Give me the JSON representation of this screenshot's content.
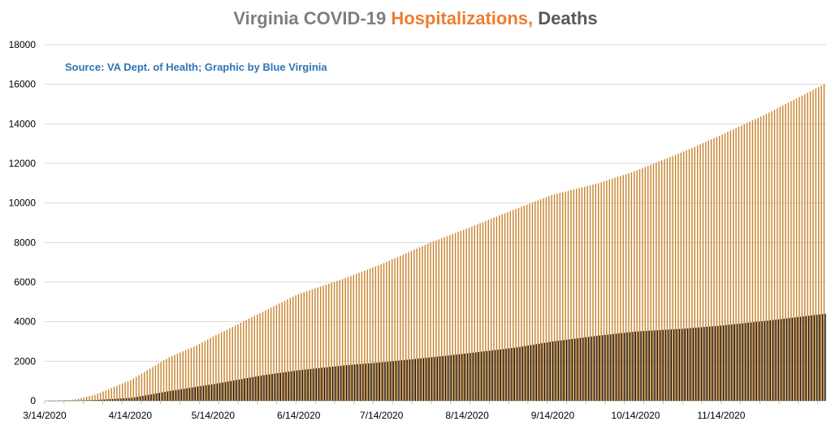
{
  "chart_data": {
    "type": "bar",
    "title_parts": [
      {
        "text": "Virginia COVID-19 ",
        "color": "#7f7f7f"
      },
      {
        "text": "Hospitalizations,",
        "color": "#ed7d31"
      },
      {
        "text": " Deaths",
        "color": "#595959"
      }
    ],
    "annotation": "Source: VA Dept. of Health; Graphic by Blue Virginia",
    "xlabel": "",
    "ylabel": "",
    "x_range": [
      "3/14/2020",
      "12/22/2020"
    ],
    "ylim": [
      0,
      18000
    ],
    "yticks": [
      0,
      2000,
      4000,
      6000,
      8000,
      10000,
      12000,
      14000,
      16000,
      18000
    ],
    "xticks": [
      "3/14/2020",
      "4/14/2020",
      "5/14/2020",
      "6/14/2020",
      "7/14/2020",
      "8/14/2020",
      "9/14/2020",
      "10/14/2020",
      "11/14/2020"
    ],
    "grid": true,
    "legend": "none",
    "series": [
      {
        "name": "Hospitalizations",
        "color": "#c8832c",
        "anchors": [
          {
            "date": "3/14/2020",
            "value": 0
          },
          {
            "date": "3/24/2020",
            "value": 50
          },
          {
            "date": "4/1/2020",
            "value": 300
          },
          {
            "date": "4/14/2020",
            "value": 1050
          },
          {
            "date": "4/28/2020",
            "value": 2200
          },
          {
            "date": "5/8/2020",
            "value": 2800
          },
          {
            "date": "5/14/2020",
            "value": 3250
          },
          {
            "date": "6/1/2020",
            "value": 4500
          },
          {
            "date": "6/14/2020",
            "value": 5400
          },
          {
            "date": "7/1/2020",
            "value": 6200
          },
          {
            "date": "7/14/2020",
            "value": 6900
          },
          {
            "date": "8/1/2020",
            "value": 8000
          },
          {
            "date": "8/14/2020",
            "value": 8700
          },
          {
            "date": "9/1/2020",
            "value": 9700
          },
          {
            "date": "9/14/2020",
            "value": 10400
          },
          {
            "date": "10/1/2020",
            "value": 11000
          },
          {
            "date": "10/14/2020",
            "value": 11600
          },
          {
            "date": "11/1/2020",
            "value": 12600
          },
          {
            "date": "11/14/2020",
            "value": 13400
          },
          {
            "date": "12/1/2020",
            "value": 14500
          },
          {
            "date": "12/22/2020",
            "value": 16000
          }
        ]
      },
      {
        "name": "Deaths",
        "color": "#1a1a1a",
        "anchors": [
          {
            "date": "3/14/2020",
            "value": 0
          },
          {
            "date": "3/24/2020",
            "value": 10
          },
          {
            "date": "4/1/2020",
            "value": 40
          },
          {
            "date": "4/14/2020",
            "value": 150
          },
          {
            "date": "4/28/2020",
            "value": 500
          },
          {
            "date": "5/14/2020",
            "value": 850
          },
          {
            "date": "6/1/2020",
            "value": 1300
          },
          {
            "date": "6/14/2020",
            "value": 1550
          },
          {
            "date": "7/1/2020",
            "value": 1800
          },
          {
            "date": "7/14/2020",
            "value": 1950
          },
          {
            "date": "8/1/2020",
            "value": 2200
          },
          {
            "date": "8/14/2020",
            "value": 2400
          },
          {
            "date": "9/1/2020",
            "value": 2700
          },
          {
            "date": "9/14/2020",
            "value": 3000
          },
          {
            "date": "10/1/2020",
            "value": 3300
          },
          {
            "date": "10/14/2020",
            "value": 3500
          },
          {
            "date": "11/1/2020",
            "value": 3650
          },
          {
            "date": "11/14/2020",
            "value": 3800
          },
          {
            "date": "12/1/2020",
            "value": 4050
          },
          {
            "date": "12/22/2020",
            "value": 4400
          }
        ]
      }
    ]
  }
}
